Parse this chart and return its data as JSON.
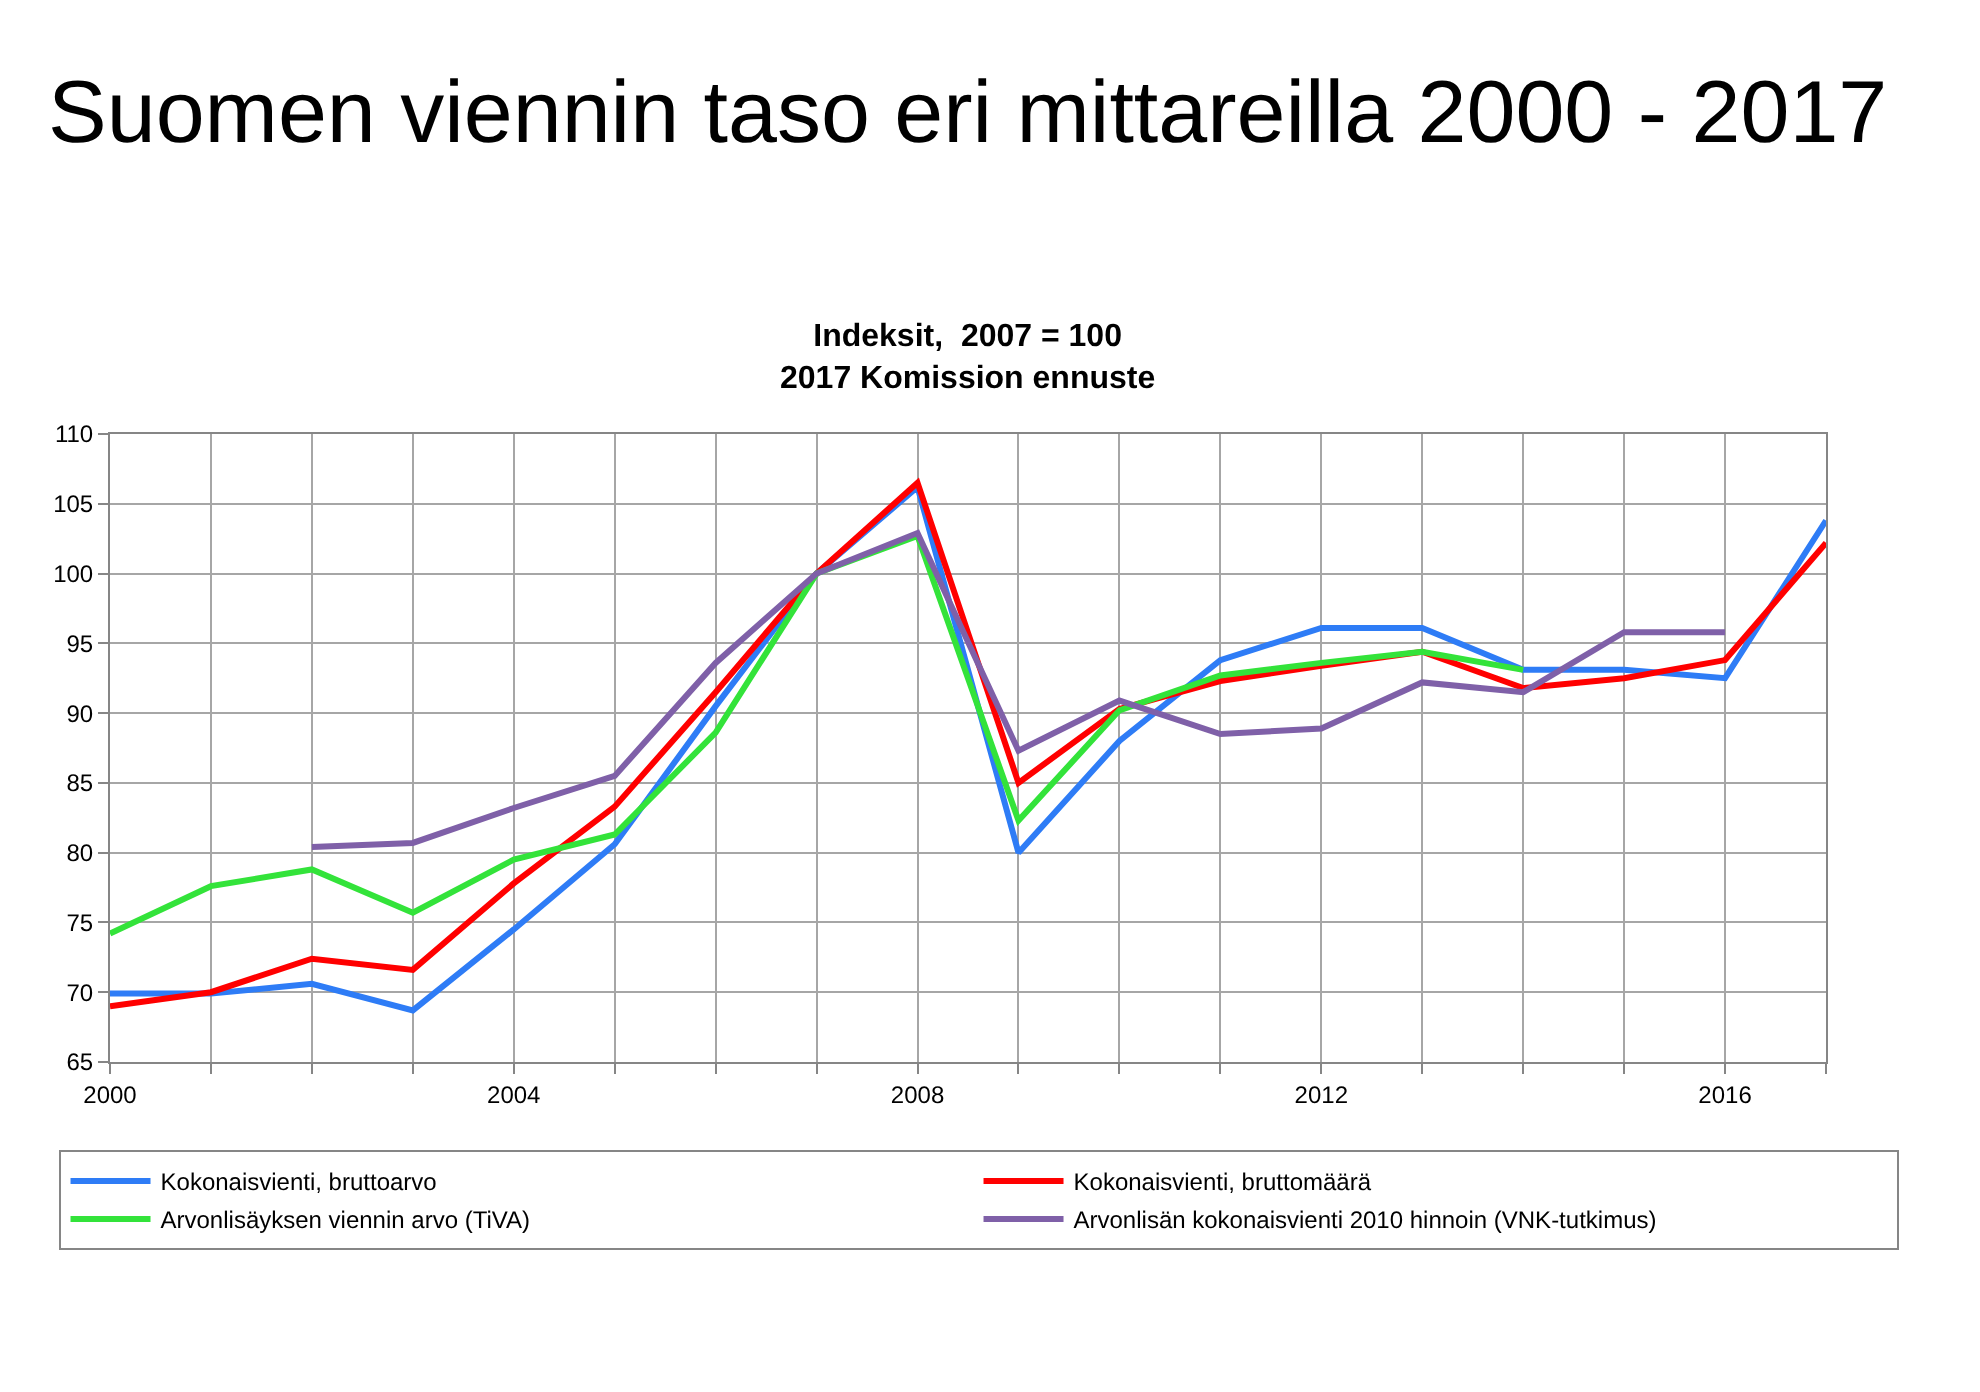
{
  "chart_data": {
    "type": "line",
    "title": "Suomen viennin taso eri mittareilla 2000 - 2017",
    "subtitle": "Indeksit,  2007 = 100\n2017 Komission ennuste",
    "x": [
      2000,
      2001,
      2002,
      2003,
      2004,
      2005,
      2006,
      2007,
      2008,
      2009,
      2010,
      2011,
      2012,
      2013,
      2014,
      2015,
      2016,
      2017
    ],
    "series": [
      {
        "name": "Kokonaisvienti, bruttoarvo",
        "color": "#2e7cf6",
        "values": [
          69.9,
          69.9,
          70.6,
          68.7,
          74.5,
          80.6,
          90.5,
          100,
          106.2,
          80,
          88,
          93.8,
          96.1,
          96.1,
          93.1,
          93.1,
          92.5,
          103.8
        ]
      },
      {
        "name": "Kokonaisvienti, bruttomäärä",
        "color": "#ff0000",
        "values": [
          69,
          70,
          72.4,
          71.6,
          77.8,
          83.3,
          91.5,
          100,
          106.5,
          85,
          90.3,
          92.3,
          93.4,
          94.4,
          91.8,
          92.5,
          93.8,
          102.2
        ]
      },
      {
        "name": "Arvonlisäyksen viennin arvo (TiVA)",
        "color": "#33e33a",
        "values": [
          74.2,
          77.6,
          78.8,
          75.7,
          79.5,
          81.3,
          88.6,
          100,
          102.7,
          82.3,
          90.2,
          92.7,
          93.6,
          94.4,
          93.1,
          null,
          null,
          null
        ]
      },
      {
        "name": "Arvonlisän kokonaisvienti 2010 hinnoin (VNK-tutkimus)",
        "color": "#7f60a8",
        "values": [
          null,
          null,
          80.4,
          80.7,
          83.2,
          85.5,
          93.6,
          100,
          102.9,
          87.3,
          90.9,
          88.5,
          88.9,
          92.2,
          91.5,
          95.8,
          95.8,
          null
        ]
      }
    ],
    "xlim": [
      2000,
      2017
    ],
    "xticks": [
      2000,
      {
        "value": 2001,
        "label": null
      },
      {
        "value": 2002,
        "label": null
      },
      {
        "value": 2003,
        "label": null
      },
      2004,
      {
        "value": 2005,
        "label": null
      },
      {
        "value": 2006,
        "label": null
      },
      {
        "value": 2007,
        "label": null
      },
      2008,
      {
        "value": 2009,
        "label": null
      },
      {
        "value": 2010,
        "label": null
      },
      {
        "value": 2011,
        "label": null
      },
      2012,
      {
        "value": 2013,
        "label": null
      },
      {
        "value": 2014,
        "label": null
      },
      {
        "value": 2015,
        "label": null
      },
      2016,
      {
        "value": 2017,
        "label": null
      }
    ],
    "ylim": [
      65,
      110
    ],
    "yticks": [
      65,
      70,
      75,
      80,
      85,
      90,
      95,
      100,
      105,
      110
    ],
    "grid": true,
    "legend": "bottom",
    "marker": "none",
    "line_style": "solid"
  }
}
